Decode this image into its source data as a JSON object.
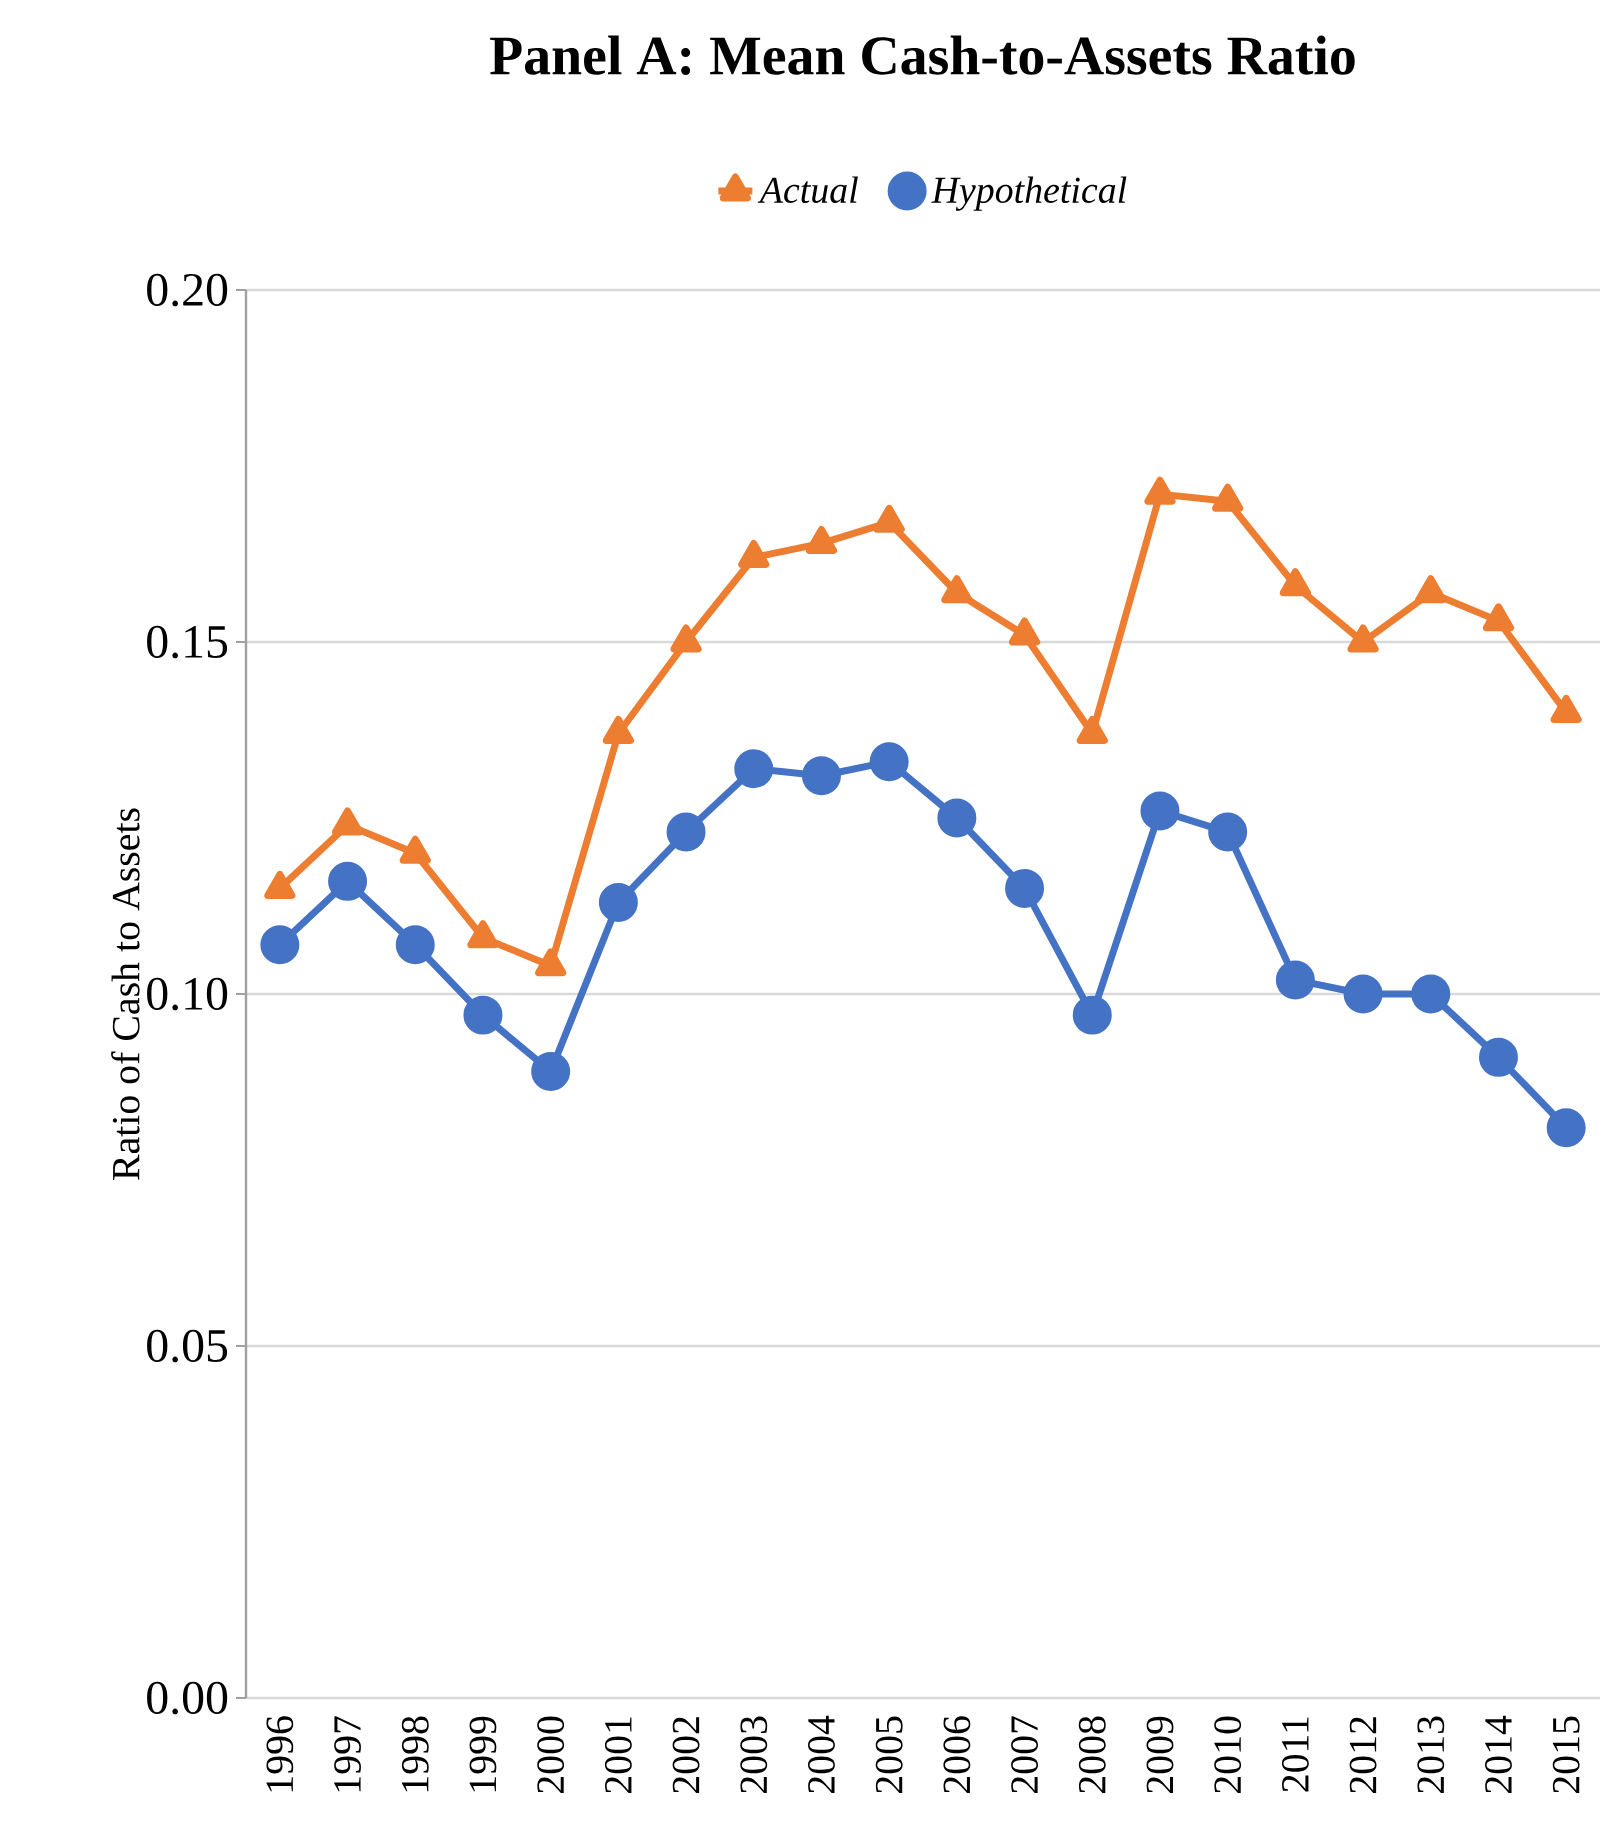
{
  "chart_data": {
    "type": "line",
    "title": "Panel A: Mean Cash-to-Assets Ratio",
    "ylabel": "Ratio of Cash to Assets",
    "categories": [
      "1996",
      "1997",
      "1998",
      "1999",
      "2000",
      "2001",
      "2002",
      "2003",
      "2004",
      "2005",
      "2006",
      "2007",
      "2008",
      "2009",
      "2010",
      "2011",
      "2012",
      "2013",
      "2014",
      "2015"
    ],
    "series": [
      {
        "name": "*Actual*",
        "color": "#ed7d31",
        "marker": "triangle",
        "values": [
          0.115,
          0.124,
          0.12,
          0.108,
          0.104,
          0.137,
          0.15,
          0.162,
          0.164,
          0.167,
          0.157,
          0.151,
          0.137,
          0.171,
          0.17,
          0.158,
          0.15,
          0.157,
          0.153,
          0.14
        ]
      },
      {
        "name": "*Hypothetical*",
        "color": "#4472c4",
        "marker": "circle",
        "values": [
          0.107,
          0.116,
          0.107,
          0.097,
          0.089,
          0.113,
          0.123,
          0.132,
          0.131,
          0.133,
          0.125,
          0.115,
          0.097,
          0.126,
          0.123,
          0.102,
          0.1,
          0.1,
          0.091,
          0.081
        ]
      }
    ],
    "ylim": [
      0,
      0.2
    ],
    "yticks": [
      {
        "value": 0,
        "label": "0.00"
      },
      {
        "value": 0.05,
        "label": "0.05"
      },
      {
        "value": 0.1,
        "label": "0.10"
      },
      {
        "value": 0.15,
        "label": "0.15"
      },
      {
        "value": 0.2,
        "label": "0.20"
      }
    ],
    "grid": "y",
    "legend": "top",
    "line_style": "solid"
  }
}
